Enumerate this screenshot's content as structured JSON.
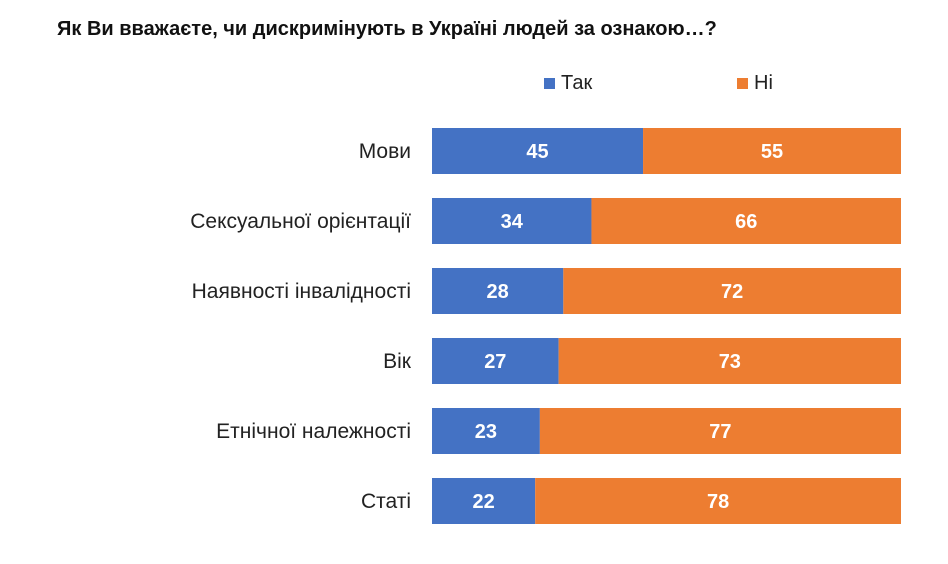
{
  "title": "Як Ви вважаєте, чи дискримінують в Україні людей за ознакою…?",
  "legend": {
    "items": [
      {
        "label": "Так",
        "color": "#4472C4"
      },
      {
        "label": "Ні",
        "color": "#ED7D31"
      }
    ]
  },
  "chart_data": {
    "type": "bar",
    "orientation": "horizontal",
    "stacked": true,
    "title": "Як Ви вважаєте, чи дискримінують в Україні людей за ознакою…?",
    "categories": [
      "Мови",
      "Сексуальної орієнтації",
      "Наявності інвалідності",
      "Вік",
      "Етнічної належності",
      "Статі"
    ],
    "series": [
      {
        "name": "Так",
        "color": "#4472C4",
        "values": [
          45,
          34,
          28,
          27,
          23,
          22
        ]
      },
      {
        "name": "Ні",
        "color": "#ED7D31",
        "values": [
          55,
          66,
          72,
          73,
          77,
          78
        ]
      }
    ],
    "xlim": [
      0,
      100
    ],
    "grid": false,
    "legend_position": "top"
  }
}
